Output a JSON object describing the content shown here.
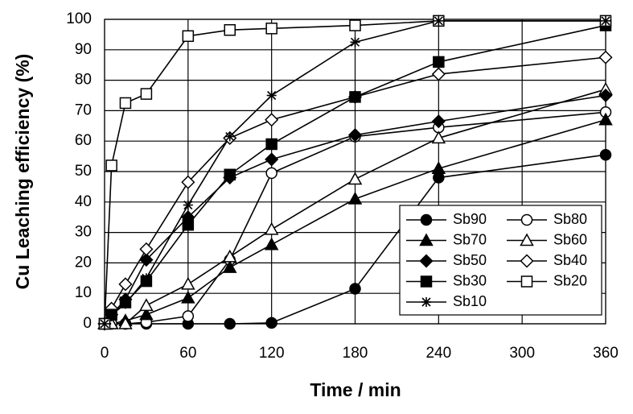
{
  "chart_data": {
    "type": "line",
    "xlabel": "Time / min",
    "ylabel": "Cu Leaching efficiency (%)",
    "x": [
      0,
      5,
      15,
      30,
      60,
      90,
      120,
      180,
      240,
      360
    ],
    "xlim": [
      0,
      360
    ],
    "xticks": [
      0,
      60,
      120,
      180,
      240,
      300,
      360
    ],
    "ylim": [
      0,
      100
    ],
    "yticks": [
      0,
      10,
      20,
      30,
      40,
      50,
      60,
      70,
      80,
      90,
      100
    ],
    "grid": true,
    "legend": "lower right",
    "series": [
      {
        "name": "Sb90",
        "color": "#000000",
        "marker": "circle",
        "fill": "#000000",
        "values": [
          0,
          0,
          0,
          0,
          0,
          0,
          0.3,
          11.5,
          48,
          55.5
        ]
      },
      {
        "name": "Sb80",
        "color": "#000000",
        "marker": "circle",
        "fill": "#ffffff",
        "values": [
          0,
          0,
          0,
          0.5,
          2.5,
          21,
          49.5,
          61.5,
          64.5,
          69.5
        ]
      },
      {
        "name": "Sb70",
        "color": "#000000",
        "marker": "triangle",
        "fill": "#000000",
        "values": [
          0,
          0,
          1,
          3,
          8.5,
          18.5,
          26,
          41,
          51,
          67
        ]
      },
      {
        "name": "Sb60",
        "color": "#000000",
        "marker": "triangle",
        "fill": "#ffffff",
        "values": [
          0,
          0,
          0,
          6,
          13,
          22,
          31,
          47.5,
          61,
          77
        ]
      },
      {
        "name": "Sb50",
        "color": "#000000",
        "marker": "diamond",
        "fill": "#000000",
        "values": [
          0,
          3,
          8,
          21,
          35,
          48,
          54,
          62,
          66.5,
          75
        ]
      },
      {
        "name": "Sb40",
        "color": "#000000",
        "marker": "diamond",
        "fill": "#ffffff",
        "values": [
          0,
          5,
          13,
          24.5,
          46.5,
          61,
          67,
          74.5,
          82,
          87.5
        ]
      },
      {
        "name": "Sb30",
        "color": "#000000",
        "marker": "square",
        "fill": "#000000",
        "values": [
          0,
          3,
          7,
          14,
          32.5,
          49,
          59,
          74.5,
          86,
          98
        ]
      },
      {
        "name": "Sb20",
        "color": "#000000",
        "marker": "square",
        "fill": "#ffffff",
        "values": [
          0,
          52,
          72.5,
          75.5,
          94.5,
          96.5,
          97,
          98,
          99.5,
          99.5
        ]
      },
      {
        "name": "Sb10",
        "color": "#000000",
        "marker": "star",
        "fill": "#000000",
        "values": [
          0,
          3,
          6.5,
          15,
          39,
          61.5,
          75,
          92.5,
          99.5,
          99.5
        ]
      }
    ]
  }
}
